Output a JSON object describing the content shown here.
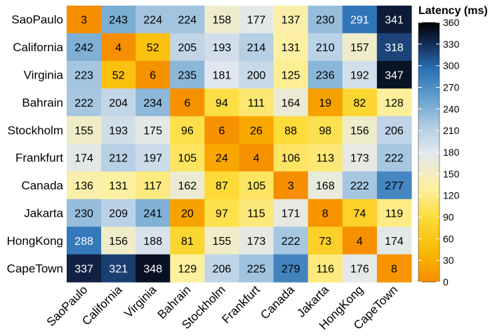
{
  "chart_data": {
    "type": "heatmap",
    "rows": [
      "SaoPaulo",
      "California",
      "Virginia",
      "Bahrain",
      "Stockholm",
      "Frankfurt",
      "Canada",
      "Jakarta",
      "HongKong",
      "CapeTown"
    ],
    "columns": [
      "SaoPaulo",
      "California",
      "Virginia",
      "Bahrain",
      "Stockholm",
      "Frankfurt",
      "Canada",
      "Jakarta",
      "HongKong",
      "CapeTown"
    ],
    "values": [
      [
        3,
        243,
        224,
        224,
        158,
        177,
        137,
        230,
        291,
        341
      ],
      [
        242,
        4,
        52,
        205,
        193,
        214,
        131,
        210,
        157,
        318
      ],
      [
        223,
        52,
        6,
        235,
        181,
        200,
        125,
        236,
        192,
        347
      ],
      [
        222,
        204,
        234,
        6,
        94,
        111,
        164,
        19,
        82,
        128
      ],
      [
        155,
        193,
        175,
        96,
        6,
        26,
        88,
        98,
        156,
        206
      ],
      [
        174,
        212,
        197,
        105,
        24,
        4,
        106,
        113,
        173,
        222
      ],
      [
        136,
        131,
        117,
        162,
        87,
        105,
        3,
        168,
        222,
        277
      ],
      [
        230,
        209,
        241,
        20,
        97,
        115,
        171,
        8,
        74,
        119
      ],
      [
        288,
        156,
        188,
        81,
        155,
        173,
        222,
        73,
        4,
        174
      ],
      [
        337,
        321,
        348,
        129,
        206,
        225,
        279,
        116,
        176,
        8
      ]
    ],
    "legend": {
      "title": "Latency (ms)",
      "range": [
        0,
        360
      ],
      "ticks": [
        0,
        30,
        60,
        90,
        120,
        150,
        180,
        210,
        240,
        270,
        300,
        330,
        360
      ],
      "colors": [
        "#f68b00",
        "#f9b800",
        "#fddc3a",
        "#fdf0a0",
        "#e2e8ee",
        "#b2cde4",
        "#6aa4cf",
        "#2a70b6",
        "#11244a",
        "#000000"
      ]
    },
    "title": "",
    "xlabel": "",
    "ylabel": ""
  }
}
